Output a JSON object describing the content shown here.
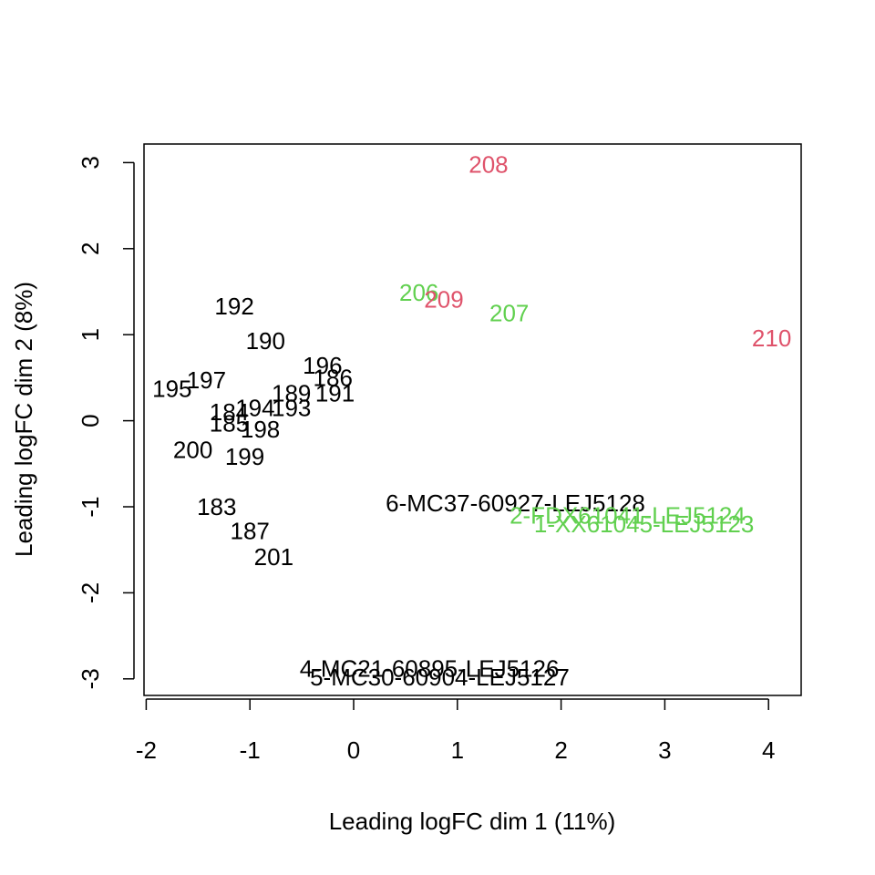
{
  "chart_data": {
    "type": "scatter",
    "title": "",
    "xlabel": "Leading logFC dim 1 (11%)",
    "ylabel": "Leading logFC dim 2 (8%)",
    "xlim": [
      -2.05,
      4.3
    ],
    "ylim": [
      -3.15,
      3.25
    ],
    "xticks": [
      -2,
      -1,
      0,
      1,
      2,
      3,
      4
    ],
    "yticks": [
      -3,
      -2,
      -1,
      0,
      1,
      2,
      3
    ],
    "grid": false,
    "colors": {
      "black": "#000000",
      "red": "#DF536B",
      "green": "#61D04F"
    },
    "points": [
      {
        "label": "208",
        "x": 1.3,
        "y": 2.98,
        "color": "red"
      },
      {
        "label": "206",
        "x": 0.63,
        "y": 1.49,
        "color": "green"
      },
      {
        "label": "209",
        "x": 0.87,
        "y": 1.41,
        "color": "red"
      },
      {
        "label": "207",
        "x": 1.5,
        "y": 1.25,
        "color": "green"
      },
      {
        "label": "210",
        "x": 4.03,
        "y": 0.96,
        "color": "red"
      },
      {
        "label": "192",
        "x": -1.15,
        "y": 1.33,
        "color": "black"
      },
      {
        "label": "190",
        "x": -0.85,
        "y": 0.93,
        "color": "black"
      },
      {
        "label": "196",
        "x": -0.3,
        "y": 0.64,
        "color": "black"
      },
      {
        "label": "186",
        "x": -0.2,
        "y": 0.5,
        "color": "black"
      },
      {
        "label": "197",
        "x": -1.42,
        "y": 0.47,
        "color": "black"
      },
      {
        "label": "195",
        "x": -1.75,
        "y": 0.37,
        "color": "black"
      },
      {
        "label": "189",
        "x": -0.6,
        "y": 0.32,
        "color": "black"
      },
      {
        "label": "191",
        "x": -0.18,
        "y": 0.32,
        "color": "black"
      },
      {
        "label": "194",
        "x": -0.95,
        "y": 0.15,
        "color": "black"
      },
      {
        "label": "193",
        "x": -0.6,
        "y": 0.15,
        "color": "black"
      },
      {
        "label": "184",
        "x": -1.2,
        "y": 0.1,
        "color": "black"
      },
      {
        "label": "185",
        "x": -1.2,
        "y": -0.03,
        "color": "black"
      },
      {
        "label": "198",
        "x": -0.9,
        "y": -0.1,
        "color": "black"
      },
      {
        "label": "200",
        "x": -1.55,
        "y": -0.34,
        "color": "black"
      },
      {
        "label": "199",
        "x": -1.05,
        "y": -0.42,
        "color": "black"
      },
      {
        "label": "6-MC37-60927-LEJ5128",
        "x": 1.56,
        "y": -0.96,
        "color": "black"
      },
      {
        "label": "2-FDX61041-LEJ5124",
        "x": 2.64,
        "y": -1.1,
        "color": "green"
      },
      {
        "label": "1-XX61045-LEJ5123",
        "x": 2.8,
        "y": -1.2,
        "color": "green"
      },
      {
        "label": "183",
        "x": -1.32,
        "y": -1.0,
        "color": "black"
      },
      {
        "label": "187",
        "x": -1.0,
        "y": -1.28,
        "color": "black"
      },
      {
        "label": "201",
        "x": -0.77,
        "y": -1.58,
        "color": "black"
      },
      {
        "label": "4-MC21-60895-LEJ5126",
        "x": 0.73,
        "y": -2.88,
        "color": "black"
      },
      {
        "label": "5-MC30-60904-LEJ5127",
        "x": 0.83,
        "y": -2.98,
        "color": "black"
      }
    ]
  }
}
